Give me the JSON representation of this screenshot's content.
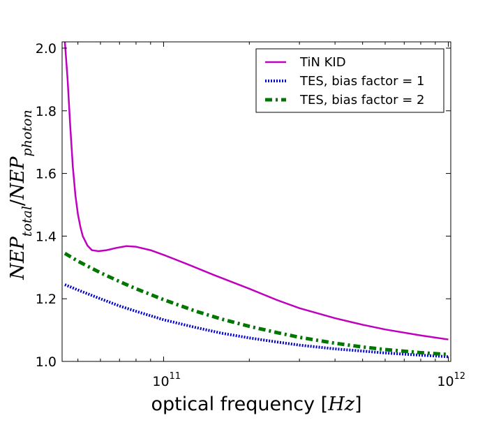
{
  "chart_data": {
    "type": "line",
    "title": "",
    "xlabel": {
      "text": "optical frequency [",
      "math": "Hz",
      "close": "]"
    },
    "ylabel": {
      "base1": "NEP",
      "sub1": "total",
      "slash": "/",
      "base2": "NEP",
      "sub2": "photon"
    },
    "xscale": "log",
    "xlim": [
      44000000000.0,
      1020000000000.0
    ],
    "ylim": [
      1.0,
      2.02
    ],
    "xticks": [
      {
        "value": 100000000000.0,
        "base": "10",
        "exp": "11"
      },
      {
        "value": 1000000000000.0,
        "base": "10",
        "exp": "12"
      }
    ],
    "yticks": [
      {
        "value": 1.0,
        "label": "1.0"
      },
      {
        "value": 1.2,
        "label": "1.2"
      },
      {
        "value": 1.4,
        "label": "1.4"
      },
      {
        "value": 1.6,
        "label": "1.6"
      },
      {
        "value": 1.8,
        "label": "1.8"
      },
      {
        "value": 2.0,
        "label": "2.0"
      }
    ],
    "grid": false,
    "legend_position": "top-right",
    "series": [
      {
        "name": "TiN KID",
        "color": "#bf00bf",
        "style": "solid",
        "points": [
          [
            45000000000.0,
            2.02
          ],
          [
            46000000000.0,
            1.9
          ],
          [
            47000000000.0,
            1.75
          ],
          [
            48000000000.0,
            1.62
          ],
          [
            49000000000.0,
            1.53
          ],
          [
            50000000000.0,
            1.47
          ],
          [
            51000000000.0,
            1.43
          ],
          [
            52000000000.0,
            1.4
          ],
          [
            54000000000.0,
            1.37
          ],
          [
            56000000000.0,
            1.355
          ],
          [
            59000000000.0,
            1.352
          ],
          [
            63000000000.0,
            1.355
          ],
          [
            68000000000.0,
            1.362
          ],
          [
            74000000000.0,
            1.368
          ],
          [
            80000000000.0,
            1.366
          ],
          [
            90000000000.0,
            1.355
          ],
          [
            100000000000.0,
            1.34
          ],
          [
            120000000000.0,
            1.312
          ],
          [
            150000000000.0,
            1.276
          ],
          [
            200000000000.0,
            1.232
          ],
          [
            250000000000.0,
            1.196
          ],
          [
            300000000000.0,
            1.17
          ],
          [
            400000000000.0,
            1.138
          ],
          [
            500000000000.0,
            1.117
          ],
          [
            600000000000.0,
            1.102
          ],
          [
            800000000000.0,
            1.083
          ],
          [
            1000000000000.0,
            1.07
          ]
        ]
      },
      {
        "name": "TES, bias factor = 1",
        "color": "#0000cc",
        "style": "dotted",
        "points": [
          [
            45000000000.0,
            1.245
          ],
          [
            50000000000.0,
            1.228
          ],
          [
            60000000000.0,
            1.2
          ],
          [
            70000000000.0,
            1.177
          ],
          [
            80000000000.0,
            1.16
          ],
          [
            100000000000.0,
            1.133
          ],
          [
            130000000000.0,
            1.108
          ],
          [
            160000000000.0,
            1.09
          ],
          [
            200000000000.0,
            1.075
          ],
          [
            250000000000.0,
            1.062
          ],
          [
            300000000000.0,
            1.052
          ],
          [
            400000000000.0,
            1.04
          ],
          [
            500000000000.0,
            1.033
          ],
          [
            600000000000.0,
            1.027
          ],
          [
            800000000000.0,
            1.02
          ],
          [
            1000000000000.0,
            1.015
          ]
        ]
      },
      {
        "name": "TES, bias factor = 2",
        "color": "#007700",
        "style": "dashdot",
        "points": [
          [
            45000000000.0,
            1.345
          ],
          [
            50000000000.0,
            1.32
          ],
          [
            60000000000.0,
            1.283
          ],
          [
            70000000000.0,
            1.255
          ],
          [
            80000000000.0,
            1.232
          ],
          [
            100000000000.0,
            1.197
          ],
          [
            130000000000.0,
            1.16
          ],
          [
            160000000000.0,
            1.135
          ],
          [
            200000000000.0,
            1.112
          ],
          [
            250000000000.0,
            1.092
          ],
          [
            300000000000.0,
            1.077
          ],
          [
            400000000000.0,
            1.058
          ],
          [
            500000000000.0,
            1.046
          ],
          [
            600000000000.0,
            1.038
          ],
          [
            800000000000.0,
            1.028
          ],
          [
            1000000000000.0,
            1.022
          ]
        ]
      }
    ]
  }
}
